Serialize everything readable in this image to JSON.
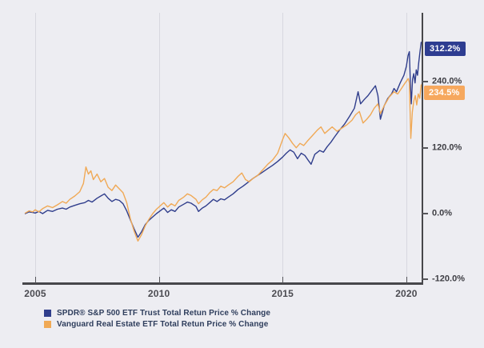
{
  "chart_data": {
    "type": "line",
    "title": "",
    "grid": "vertical-only",
    "legend_position": "bottom-left",
    "x_axis": {
      "ticks": [
        2005,
        2010,
        2015,
        2020
      ],
      "tick_labels": [
        "2005",
        "2010",
        "2015",
        "2020"
      ],
      "range": [
        2004.5,
        2020.65
      ]
    },
    "y_axis": {
      "unit": "%",
      "ticks": [
        240,
        120,
        0,
        -120
      ],
      "tick_labels": [
        "240.0%",
        "120.0%",
        "0.0%",
        "-120.0%"
      ],
      "range": [
        -150,
        360
      ]
    },
    "end_labels": {
      "spy": "312.2%",
      "vnq": "234.5%"
    },
    "colors": {
      "spy_line": "#303e8c",
      "spy_badge": "#2e3d91",
      "vnq_line": "#f0a956",
      "vnq_badge": "#f6a85e",
      "axis": "#47474b",
      "gridline": "#d7d8df",
      "background": "#ededf2",
      "tick_text": "#3e3e44",
      "legend_text": "#2e3d5c"
    },
    "series": [
      {
        "name": "SPDR® S&P 500 ETF Trust Total Retun Price % Change",
        "color": "#303e8c",
        "end_value": 312.2,
        "points": [
          [
            2004.6,
            0
          ],
          [
            2004.75,
            3
          ],
          [
            2004.9,
            2
          ],
          [
            2005.0,
            1
          ],
          [
            2005.15,
            4
          ],
          [
            2005.3,
            0
          ],
          [
            2005.5,
            6
          ],
          [
            2005.7,
            4
          ],
          [
            2005.9,
            8
          ],
          [
            2006.1,
            10
          ],
          [
            2006.25,
            8
          ],
          [
            2006.4,
            12
          ],
          [
            2006.6,
            15
          ],
          [
            2006.8,
            18
          ],
          [
            2007.0,
            20
          ],
          [
            2007.15,
            24
          ],
          [
            2007.3,
            21
          ],
          [
            2007.5,
            28
          ],
          [
            2007.65,
            32
          ],
          [
            2007.8,
            36
          ],
          [
            2007.95,
            28
          ],
          [
            2008.1,
            22
          ],
          [
            2008.25,
            26
          ],
          [
            2008.4,
            24
          ],
          [
            2008.55,
            18
          ],
          [
            2008.7,
            5
          ],
          [
            2008.85,
            -12
          ],
          [
            2009.0,
            -28
          ],
          [
            2009.15,
            -43
          ],
          [
            2009.3,
            -33
          ],
          [
            2009.45,
            -20
          ],
          [
            2009.6,
            -12
          ],
          [
            2009.75,
            -6
          ],
          [
            2009.9,
            0
          ],
          [
            2010.05,
            5
          ],
          [
            2010.2,
            10
          ],
          [
            2010.35,
            2
          ],
          [
            2010.5,
            7
          ],
          [
            2010.65,
            4
          ],
          [
            2010.8,
            12
          ],
          [
            2011.0,
            17
          ],
          [
            2011.15,
            21
          ],
          [
            2011.3,
            19
          ],
          [
            2011.5,
            13
          ],
          [
            2011.6,
            4
          ],
          [
            2011.75,
            10
          ],
          [
            2011.9,
            14
          ],
          [
            2012.05,
            20
          ],
          [
            2012.2,
            26
          ],
          [
            2012.35,
            22
          ],
          [
            2012.5,
            27
          ],
          [
            2012.65,
            25
          ],
          [
            2012.8,
            30
          ],
          [
            2013.0,
            36
          ],
          [
            2013.2,
            44
          ],
          [
            2013.4,
            50
          ],
          [
            2013.6,
            57
          ],
          [
            2013.8,
            64
          ],
          [
            2014.0,
            70
          ],
          [
            2014.2,
            76
          ],
          [
            2014.4,
            82
          ],
          [
            2014.6,
            88
          ],
          [
            2014.8,
            95
          ],
          [
            2015.0,
            103
          ],
          [
            2015.15,
            110
          ],
          [
            2015.3,
            116
          ],
          [
            2015.45,
            112
          ],
          [
            2015.6,
            100
          ],
          [
            2015.75,
            110
          ],
          [
            2015.9,
            106
          ],
          [
            2016.05,
            96
          ],
          [
            2016.15,
            90
          ],
          [
            2016.3,
            108
          ],
          [
            2016.5,
            115
          ],
          [
            2016.65,
            112
          ],
          [
            2016.8,
            122
          ],
          [
            2016.95,
            130
          ],
          [
            2017.1,
            140
          ],
          [
            2017.3,
            152
          ],
          [
            2017.5,
            163
          ],
          [
            2017.7,
            177
          ],
          [
            2017.9,
            192
          ],
          [
            2018.05,
            222
          ],
          [
            2018.15,
            200
          ],
          [
            2018.3,
            208
          ],
          [
            2018.45,
            215
          ],
          [
            2018.6,
            224
          ],
          [
            2018.75,
            233
          ],
          [
            2018.85,
            215
          ],
          [
            2018.95,
            172
          ],
          [
            2019.1,
            196
          ],
          [
            2019.25,
            210
          ],
          [
            2019.4,
            218
          ],
          [
            2019.5,
            228
          ],
          [
            2019.6,
            222
          ],
          [
            2019.75,
            238
          ],
          [
            2019.9,
            252
          ],
          [
            2020.0,
            268
          ],
          [
            2020.07,
            288
          ],
          [
            2020.12,
            295
          ],
          [
            2020.17,
            228
          ],
          [
            2020.2,
            200
          ],
          [
            2020.25,
            245
          ],
          [
            2020.3,
            255
          ],
          [
            2020.35,
            238
          ],
          [
            2020.4,
            262
          ],
          [
            2020.45,
            252
          ],
          [
            2020.5,
            275
          ],
          [
            2020.55,
            295
          ],
          [
            2020.6,
            312.2
          ]
        ]
      },
      {
        "name": "Vanguard Real Estate ETF Total Retun Price % Change",
        "color": "#f0a956",
        "end_value": 234.5,
        "points": [
          [
            2004.6,
            1
          ],
          [
            2004.75,
            5
          ],
          [
            2004.9,
            3
          ],
          [
            2005.0,
            7
          ],
          [
            2005.15,
            3
          ],
          [
            2005.3,
            9
          ],
          [
            2005.5,
            14
          ],
          [
            2005.7,
            11
          ],
          [
            2005.9,
            16
          ],
          [
            2006.1,
            22
          ],
          [
            2006.25,
            19
          ],
          [
            2006.4,
            26
          ],
          [
            2006.6,
            32
          ],
          [
            2006.8,
            40
          ],
          [
            2006.95,
            55
          ],
          [
            2007.05,
            85
          ],
          [
            2007.15,
            72
          ],
          [
            2007.25,
            78
          ],
          [
            2007.35,
            62
          ],
          [
            2007.5,
            72
          ],
          [
            2007.65,
            58
          ],
          [
            2007.8,
            64
          ],
          [
            2007.95,
            48
          ],
          [
            2008.1,
            42
          ],
          [
            2008.25,
            52
          ],
          [
            2008.4,
            45
          ],
          [
            2008.55,
            38
          ],
          [
            2008.7,
            20
          ],
          [
            2008.85,
            -10
          ],
          [
            2009.0,
            -32
          ],
          [
            2009.15,
            -50
          ],
          [
            2009.3,
            -38
          ],
          [
            2009.45,
            -22
          ],
          [
            2009.6,
            -10
          ],
          [
            2009.75,
            0
          ],
          [
            2009.9,
            8
          ],
          [
            2010.05,
            14
          ],
          [
            2010.2,
            20
          ],
          [
            2010.35,
            12
          ],
          [
            2010.5,
            18
          ],
          [
            2010.65,
            14
          ],
          [
            2010.8,
            24
          ],
          [
            2011.0,
            30
          ],
          [
            2011.15,
            36
          ],
          [
            2011.3,
            33
          ],
          [
            2011.5,
            26
          ],
          [
            2011.6,
            18
          ],
          [
            2011.75,
            25
          ],
          [
            2011.9,
            30
          ],
          [
            2012.05,
            38
          ],
          [
            2012.2,
            44
          ],
          [
            2012.35,
            42
          ],
          [
            2012.5,
            50
          ],
          [
            2012.65,
            47
          ],
          [
            2012.8,
            52
          ],
          [
            2013.0,
            58
          ],
          [
            2013.2,
            68
          ],
          [
            2013.35,
            74
          ],
          [
            2013.5,
            62
          ],
          [
            2013.65,
            58
          ],
          [
            2013.8,
            64
          ],
          [
            2014.0,
            70
          ],
          [
            2014.2,
            80
          ],
          [
            2014.4,
            90
          ],
          [
            2014.6,
            98
          ],
          [
            2014.8,
            110
          ],
          [
            2015.0,
            135
          ],
          [
            2015.1,
            146
          ],
          [
            2015.25,
            138
          ],
          [
            2015.4,
            128
          ],
          [
            2015.55,
            120
          ],
          [
            2015.7,
            128
          ],
          [
            2015.85,
            124
          ],
          [
            2016.0,
            132
          ],
          [
            2016.2,
            142
          ],
          [
            2016.4,
            152
          ],
          [
            2016.55,
            158
          ],
          [
            2016.7,
            146
          ],
          [
            2016.85,
            152
          ],
          [
            2017.0,
            158
          ],
          [
            2017.2,
            150
          ],
          [
            2017.4,
            156
          ],
          [
            2017.6,
            162
          ],
          [
            2017.8,
            170
          ],
          [
            2017.95,
            180
          ],
          [
            2018.1,
            186
          ],
          [
            2018.25,
            165
          ],
          [
            2018.4,
            172
          ],
          [
            2018.55,
            180
          ],
          [
            2018.7,
            192
          ],
          [
            2018.85,
            200
          ],
          [
            2018.95,
            182
          ],
          [
            2019.1,
            196
          ],
          [
            2019.3,
            212
          ],
          [
            2019.5,
            222
          ],
          [
            2019.65,
            218
          ],
          [
            2019.8,
            228
          ],
          [
            2019.95,
            238
          ],
          [
            2020.08,
            246
          ],
          [
            2020.12,
            238
          ],
          [
            2020.18,
            137
          ],
          [
            2020.24,
            185
          ],
          [
            2020.3,
            205
          ],
          [
            2020.36,
            215
          ],
          [
            2020.42,
            198
          ],
          [
            2020.48,
            218
          ],
          [
            2020.54,
            210
          ],
          [
            2020.6,
            234.5
          ]
        ]
      }
    ]
  }
}
